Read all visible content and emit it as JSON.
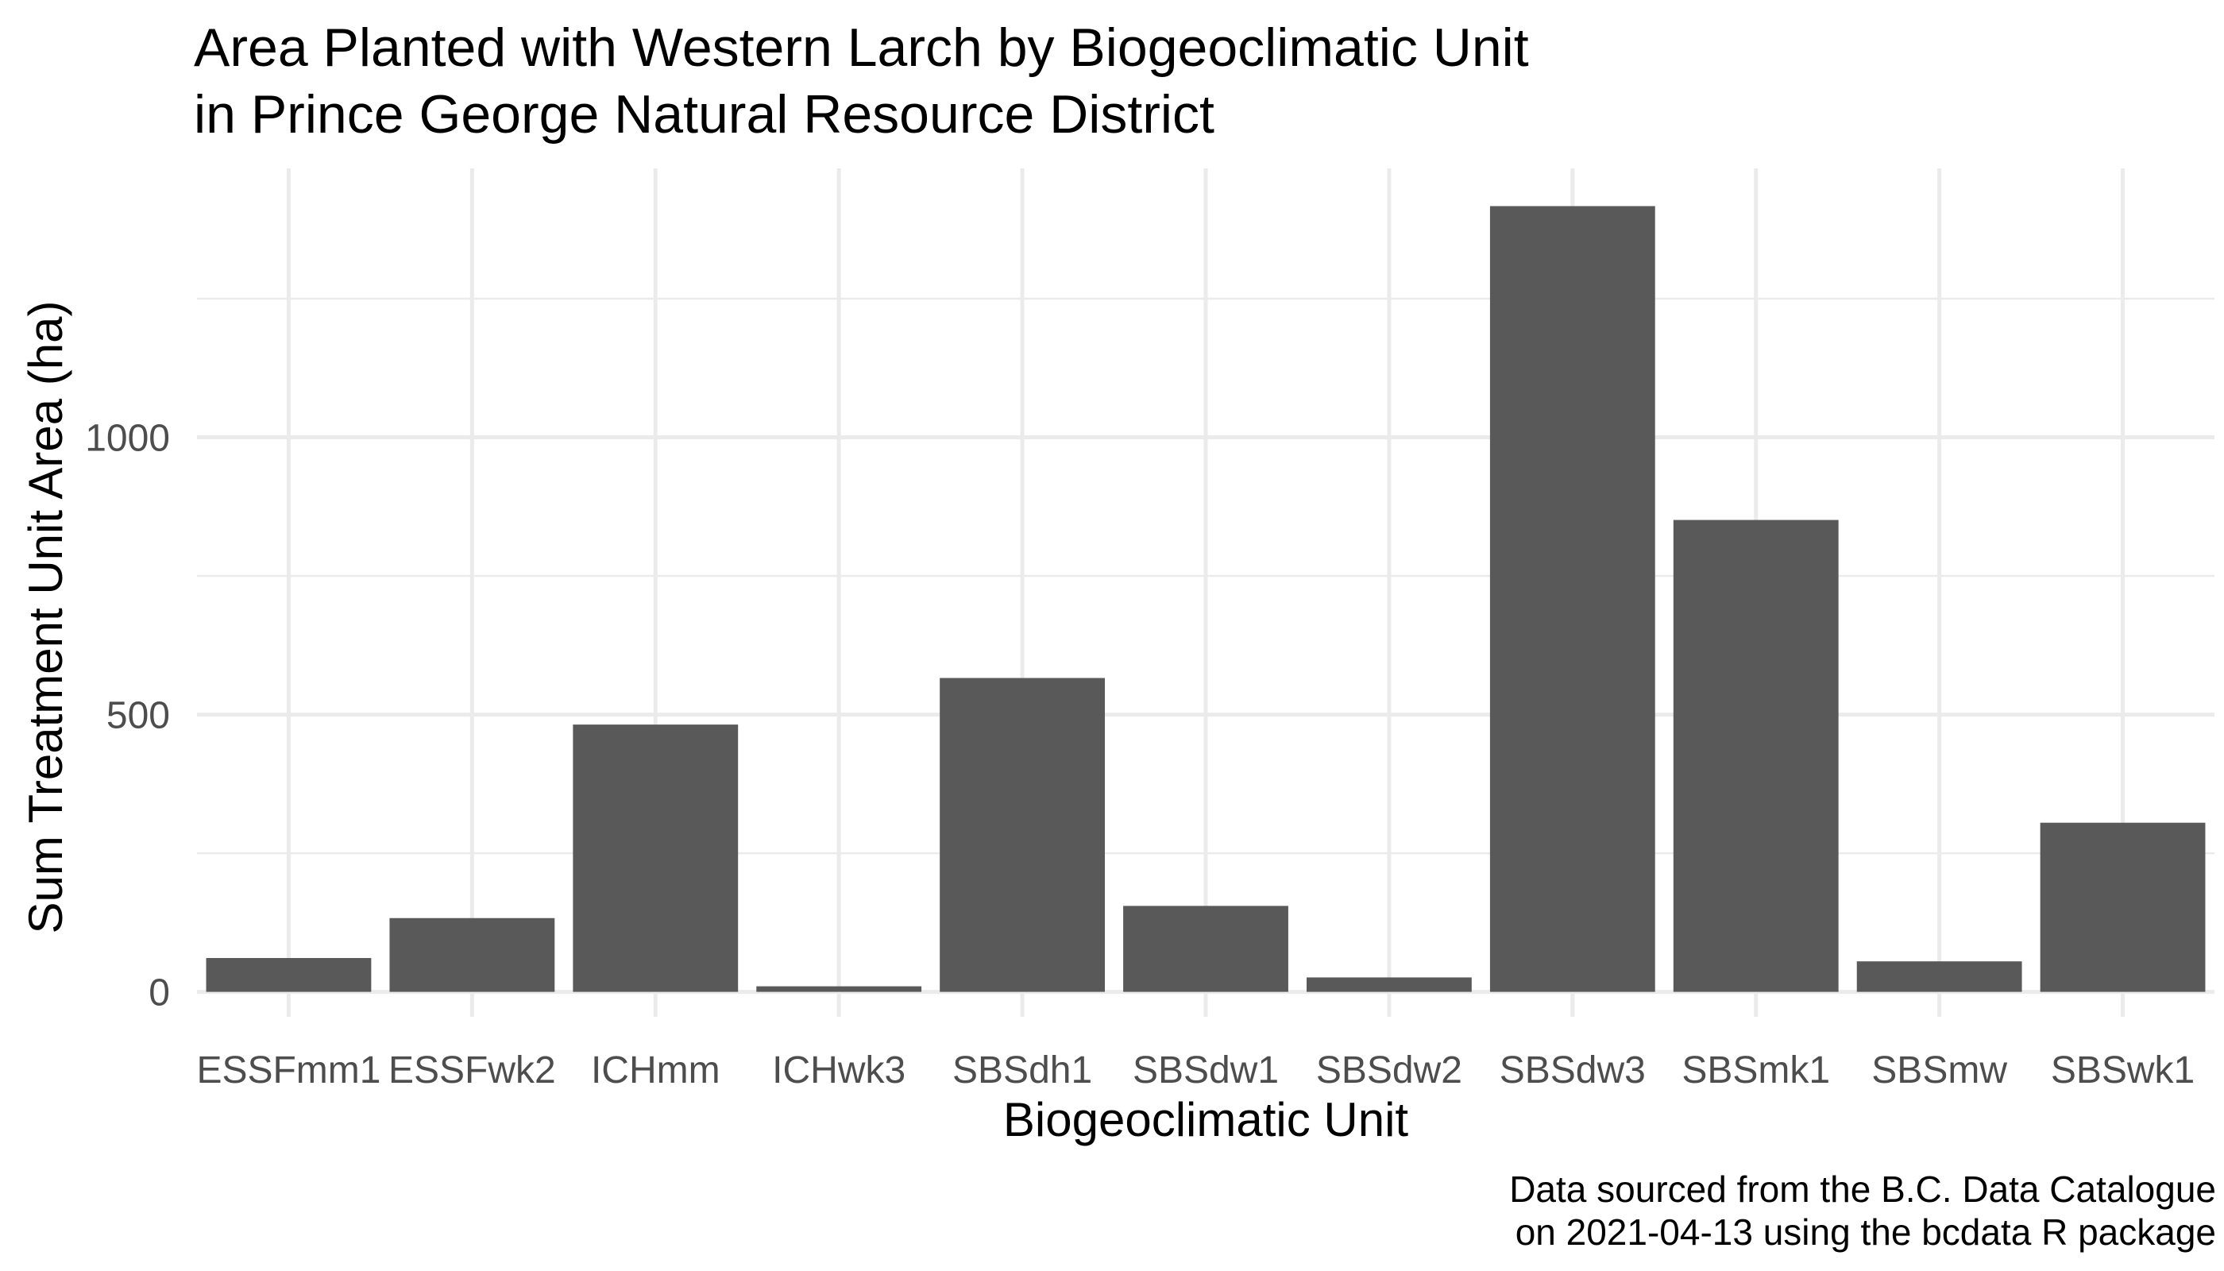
{
  "chart_data": {
    "type": "bar",
    "title_lines": [
      "Area Planted with Western Larch by Biogeoclimatic Unit",
      "in Prince George Natural Resource District"
    ],
    "xlabel": "Biogeoclimatic Unit",
    "ylabel": "Sum Treatment Unit Area (ha)",
    "categories": [
      "ESSFmm1",
      "ESSFwk2",
      "ICHmm",
      "ICHwk3",
      "SBSdh1",
      "SBSdw1",
      "SBSdw2",
      "SBSdw3",
      "SBSmk1",
      "SBSmw",
      "SBSwk1"
    ],
    "values": [
      61,
      133,
      482,
      10,
      566,
      155,
      26,
      1417,
      851,
      55,
      305
    ],
    "ylim": [
      -45,
      1485
    ],
    "yticks": [
      0,
      500,
      1000
    ],
    "ytick_labels": [
      "0",
      "500",
      "1000"
    ],
    "grid": true,
    "legend": "none",
    "bar_color": "#595959",
    "caption_lines": [
      "Data sourced from the B.C. Data Catalogue",
      "on 2021-04-13 using the bcdata R package"
    ]
  }
}
